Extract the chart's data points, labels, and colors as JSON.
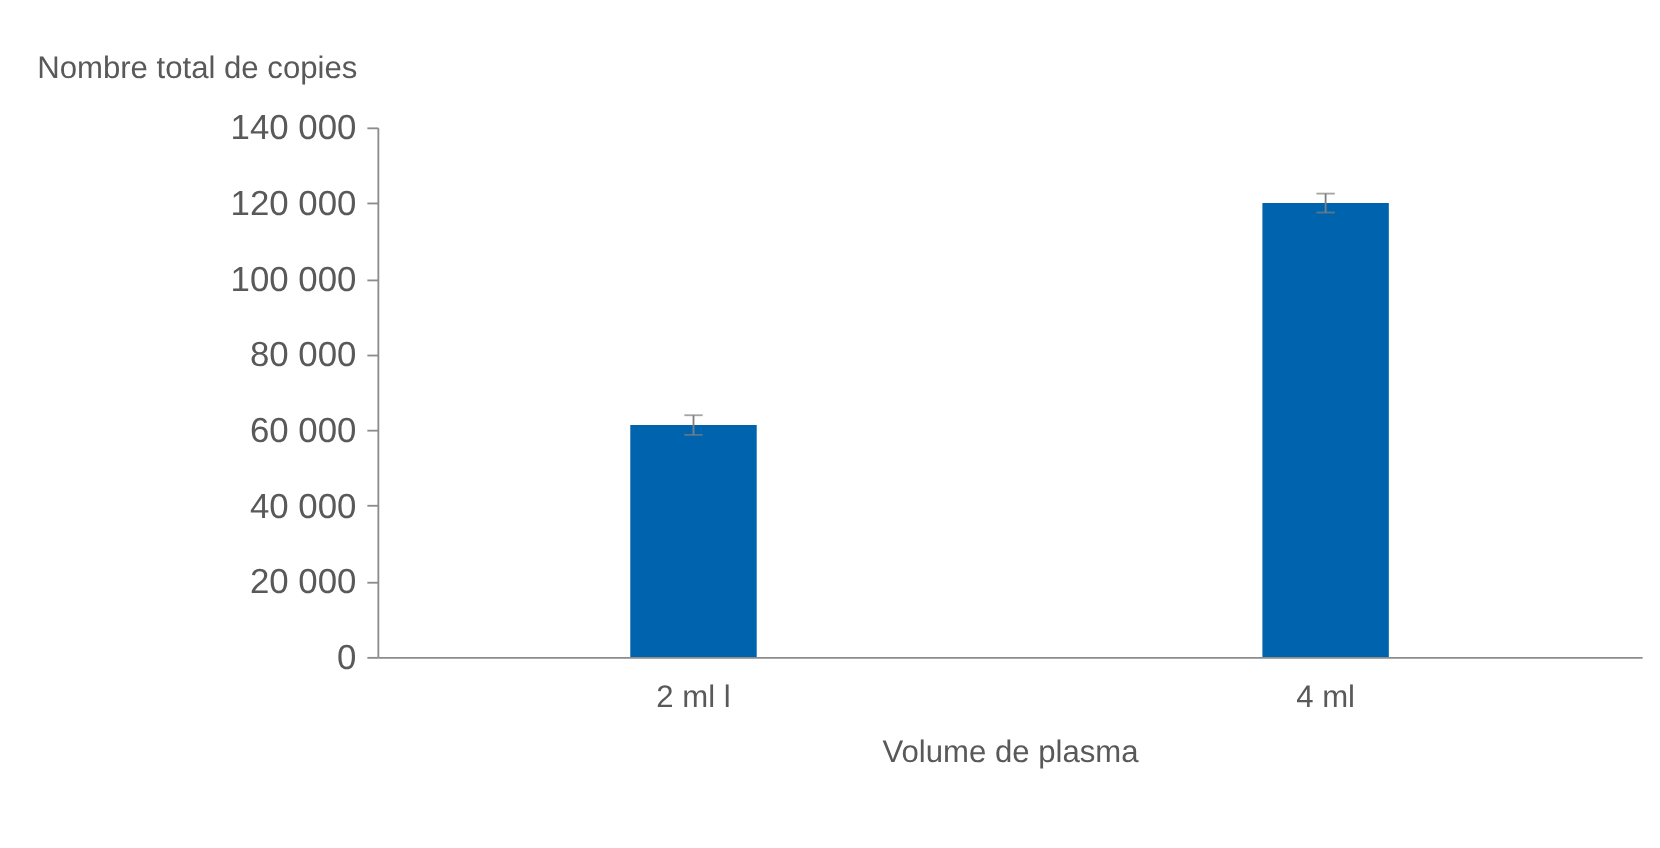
{
  "chart_data": {
    "type": "bar",
    "ylabel": "Nombre total de copies",
    "xlabel": "Volume de plasma",
    "categories": [
      "2 ml l",
      "4 ml"
    ],
    "values": [
      61300,
      120000
    ],
    "errors": [
      2600,
      2500
    ],
    "color": "#0063ad",
    "ylim": [
      0,
      140000
    ],
    "yticks": [
      {
        "value": 0,
        "label": "0"
      },
      {
        "value": 20000,
        "label": "20 000"
      },
      {
        "value": 40000,
        "label": "40 000"
      },
      {
        "value": 60000,
        "label": "60 000"
      },
      {
        "value": 80000,
        "label": "80 000"
      },
      {
        "value": 100000,
        "label": "100 000"
      },
      {
        "value": 120000,
        "label": "120 000"
      },
      {
        "value": 140000,
        "label": "140 000"
      }
    ],
    "grid": false
  }
}
